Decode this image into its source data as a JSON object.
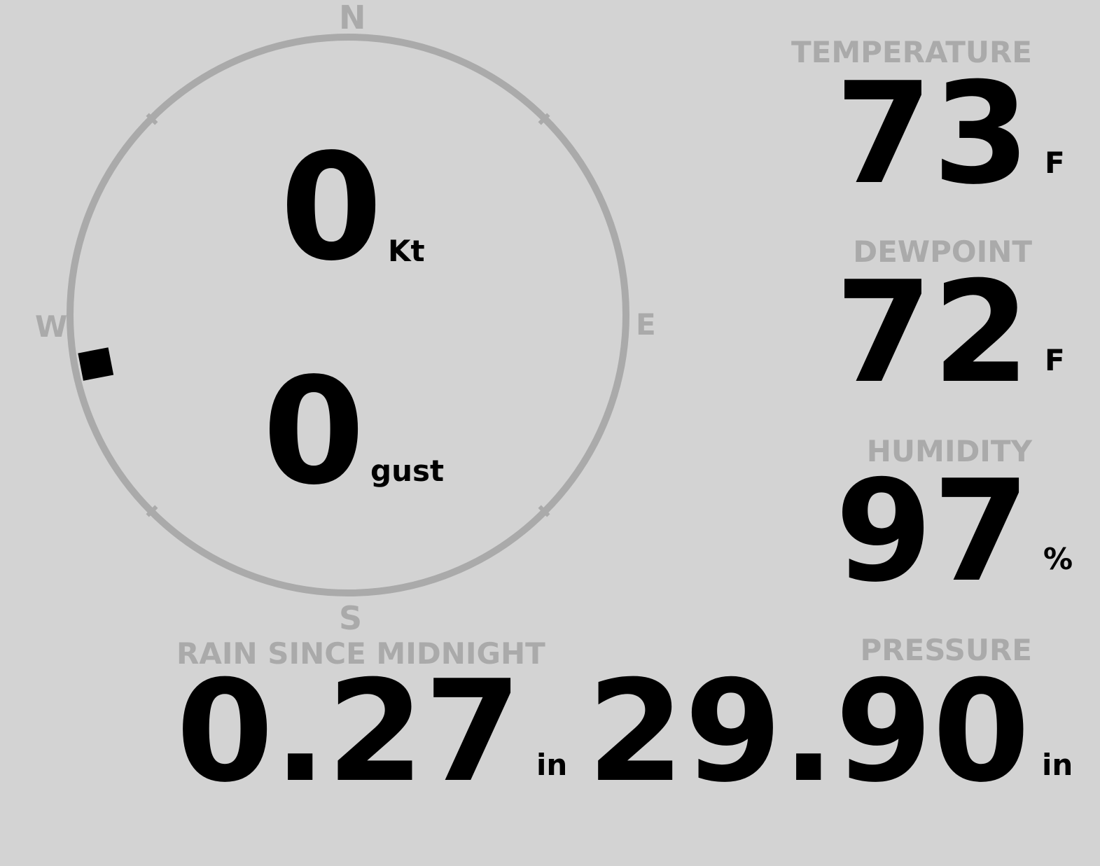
{
  "compass": {
    "north": "N",
    "south": "S",
    "east": "E",
    "west": "W",
    "wind_direction_deg": 259,
    "ring_color": "#aaaaaa"
  },
  "wind": {
    "speed": "0",
    "speed_unit": "Kt",
    "gust": "0",
    "gust_unit": "gust"
  },
  "temperature": {
    "label": "TEMPERATURE",
    "value": "73",
    "unit": "F"
  },
  "dewpoint": {
    "label": "DEWPOINT",
    "value": "72",
    "unit": "F"
  },
  "humidity": {
    "label": "HUMIDITY",
    "value": "97",
    "unit": "%"
  },
  "rain": {
    "label": "RAIN SINCE MIDNIGHT",
    "value": "0.27",
    "unit": "in"
  },
  "pressure": {
    "label": "PRESSURE",
    "value": "29.90",
    "unit": "in"
  },
  "colors": {
    "background": "#d3d3d3",
    "label": "#aaaaaa",
    "value": "#000000"
  }
}
